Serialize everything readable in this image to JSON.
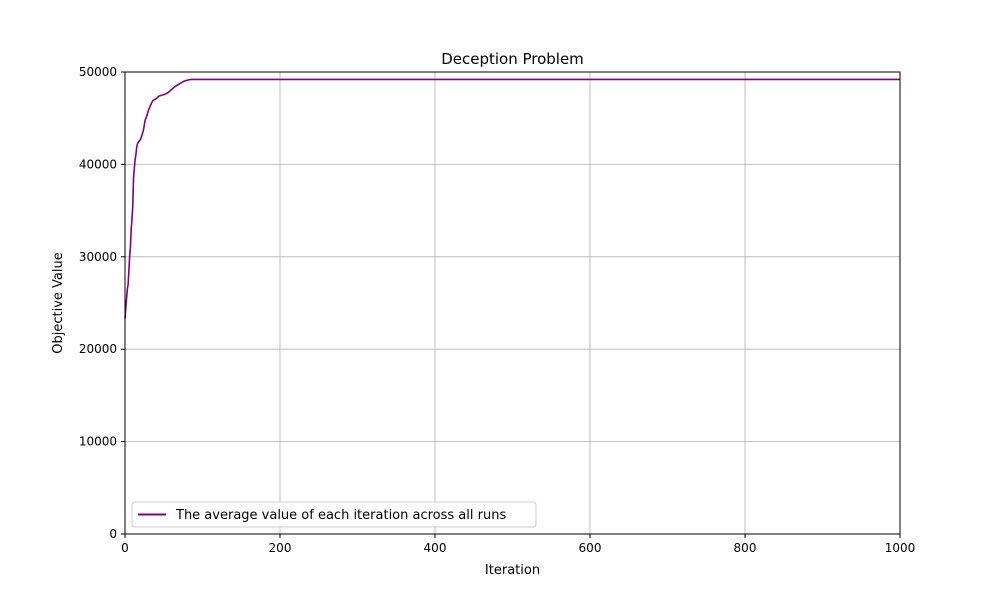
{
  "chart_data": {
    "type": "line",
    "title": "Deception Problem",
    "xlabel": "Iteration",
    "ylabel": "Objective Value",
    "xlim": [
      0,
      1000
    ],
    "ylim": [
      0,
      50000
    ],
    "x_ticks": [
      0,
      200,
      400,
      600,
      800,
      1000
    ],
    "y_ticks": [
      0,
      10000,
      20000,
      30000,
      40000,
      50000
    ],
    "grid": true,
    "legend_position": "lower-left",
    "series": [
      {
        "name": "The average value of each iteration across all runs",
        "color": "#800080",
        "x": [
          0,
          1,
          2,
          3,
          4,
          5,
          6,
          7,
          8,
          9,
          10,
          11,
          12,
          13,
          14,
          15,
          16,
          17,
          18,
          19,
          20,
          22,
          24,
          26,
          28,
          30,
          32,
          34,
          36,
          38,
          40,
          44,
          48,
          52,
          56,
          60,
          64,
          68,
          72,
          76,
          80,
          85,
          90,
          100,
          200,
          400,
          600,
          800,
          1000
        ],
        "y": [
          23300,
          24500,
          25500,
          26500,
          27000,
          28500,
          30000,
          31000,
          33000,
          34000,
          35500,
          38500,
          39500,
          40500,
          41000,
          41800,
          42200,
          42400,
          42500,
          42600,
          42700,
          43200,
          43800,
          44800,
          45200,
          45800,
          46200,
          46600,
          46900,
          47000,
          47100,
          47400,
          47500,
          47600,
          47800,
          48100,
          48400,
          48600,
          48800,
          49000,
          49100,
          49200,
          49200,
          49200,
          49200,
          49200,
          49200,
          49200,
          49200
        ]
      }
    ]
  }
}
